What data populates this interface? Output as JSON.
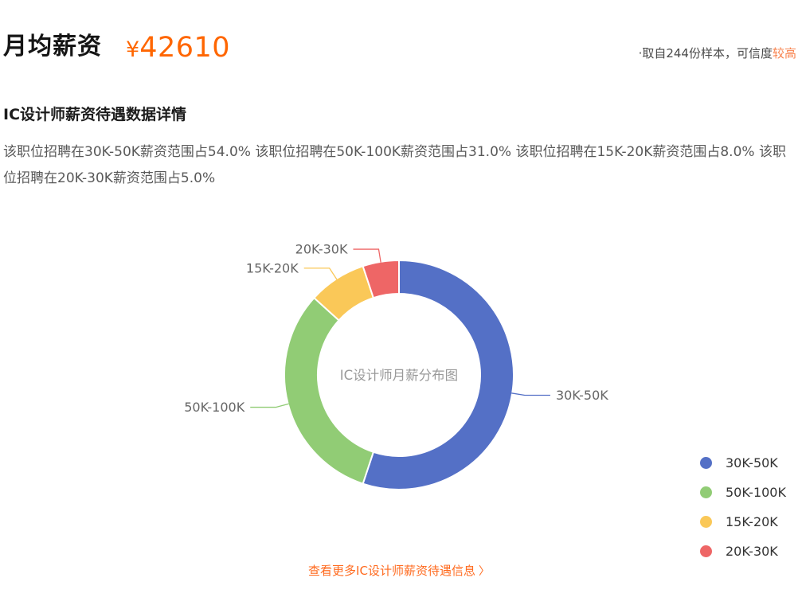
{
  "header": {
    "title": "月均薪资",
    "currency_symbol": "¥",
    "salary_value": "42610",
    "sample_note": "·取自244份样本，可信度",
    "sample_note_highlight": "较高"
  },
  "section": {
    "heading": "IC设计师薪资待遇数据详情",
    "description": "该职位招聘在30K-50K薪资范围占54.0% 该职位招聘在50K-100K薪资范围占31.0% 该职位招聘在15K-20K薪资范围占8.0% 该职位招聘在20K-30K薪资范围占5.0%"
  },
  "chart_data": {
    "type": "pie",
    "subtype": "donut",
    "title": "IC设计师月薪分布图",
    "center_label": "IC设计师月薪分布图",
    "categories": [
      "30K-50K",
      "50K-100K",
      "15K-20K",
      "20K-30K"
    ],
    "values": [
      54.0,
      31.0,
      8.0,
      5.0
    ],
    "unit": "percent",
    "colors": [
      "#5470c6",
      "#91cc75",
      "#fac858",
      "#ee6666"
    ],
    "legend_position": "right",
    "callout_labels": [
      "30K-50K",
      "50K-100K",
      "15K-20K",
      "20K-30K"
    ],
    "start_angle_deg_clockwise_from_top": 0
  },
  "footer": {
    "more_link": "查看更多IC设计师薪资待遇信息",
    "chevron": "〉"
  },
  "theme": {
    "accent_orange": "#ff6600",
    "note_highlight_orange": "#f8834e",
    "link_orange": "#ff6a1e",
    "text_dark": "#1c1c1c",
    "text_gray": "#595959",
    "slice_label_gray": "#666666",
    "center_label_gray": "#999999",
    "legend_text_color": "#333333"
  }
}
